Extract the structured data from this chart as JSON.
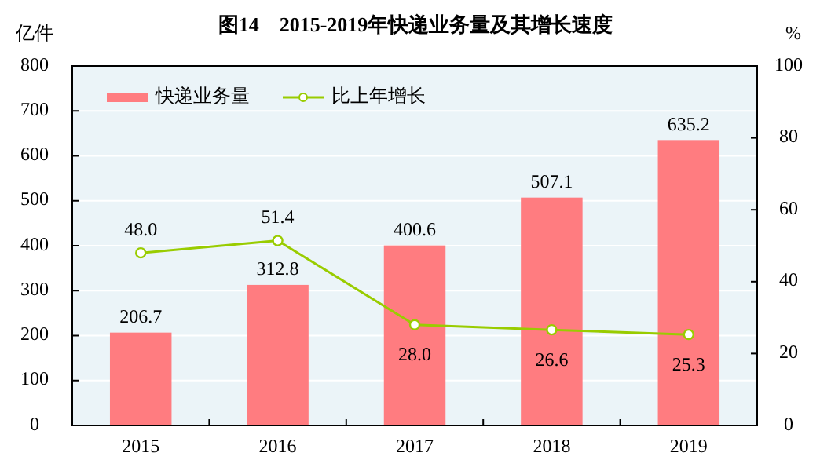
{
  "chart_data": {
    "type": "bar",
    "title": "图14　2015-2019年快递业务量及其增长速度",
    "ylabel": "亿件",
    "y2label": "%",
    "categories": [
      "2015",
      "2016",
      "2017",
      "2018",
      "2019"
    ],
    "series": [
      {
        "name": "快递业务量",
        "color": "#ff7c80",
        "values": [
          206.7,
          312.8,
          400.6,
          507.1,
          635.2
        ],
        "value_labels": [
          "206.7",
          "312.8",
          "400.6",
          "507.1",
          "635.2"
        ]
      },
      {
        "name": "比上年增长",
        "type": "line",
        "axis": "y2",
        "color": "#99cc00",
        "marker": "circle",
        "values": [
          48.0,
          51.4,
          28.0,
          26.6,
          25.3
        ],
        "value_labels": [
          "48.0",
          "51.4",
          "28.0",
          "26.6",
          "25.3"
        ]
      }
    ],
    "ylim": [
      0,
      800
    ],
    "yticks": [
      0,
      100,
      200,
      300,
      400,
      500,
      600,
      700,
      800
    ],
    "y2lim": [
      0,
      100
    ],
    "y2ticks": [
      0,
      20,
      40,
      60,
      80,
      100
    ],
    "grid": "y",
    "legend": "top left"
  }
}
